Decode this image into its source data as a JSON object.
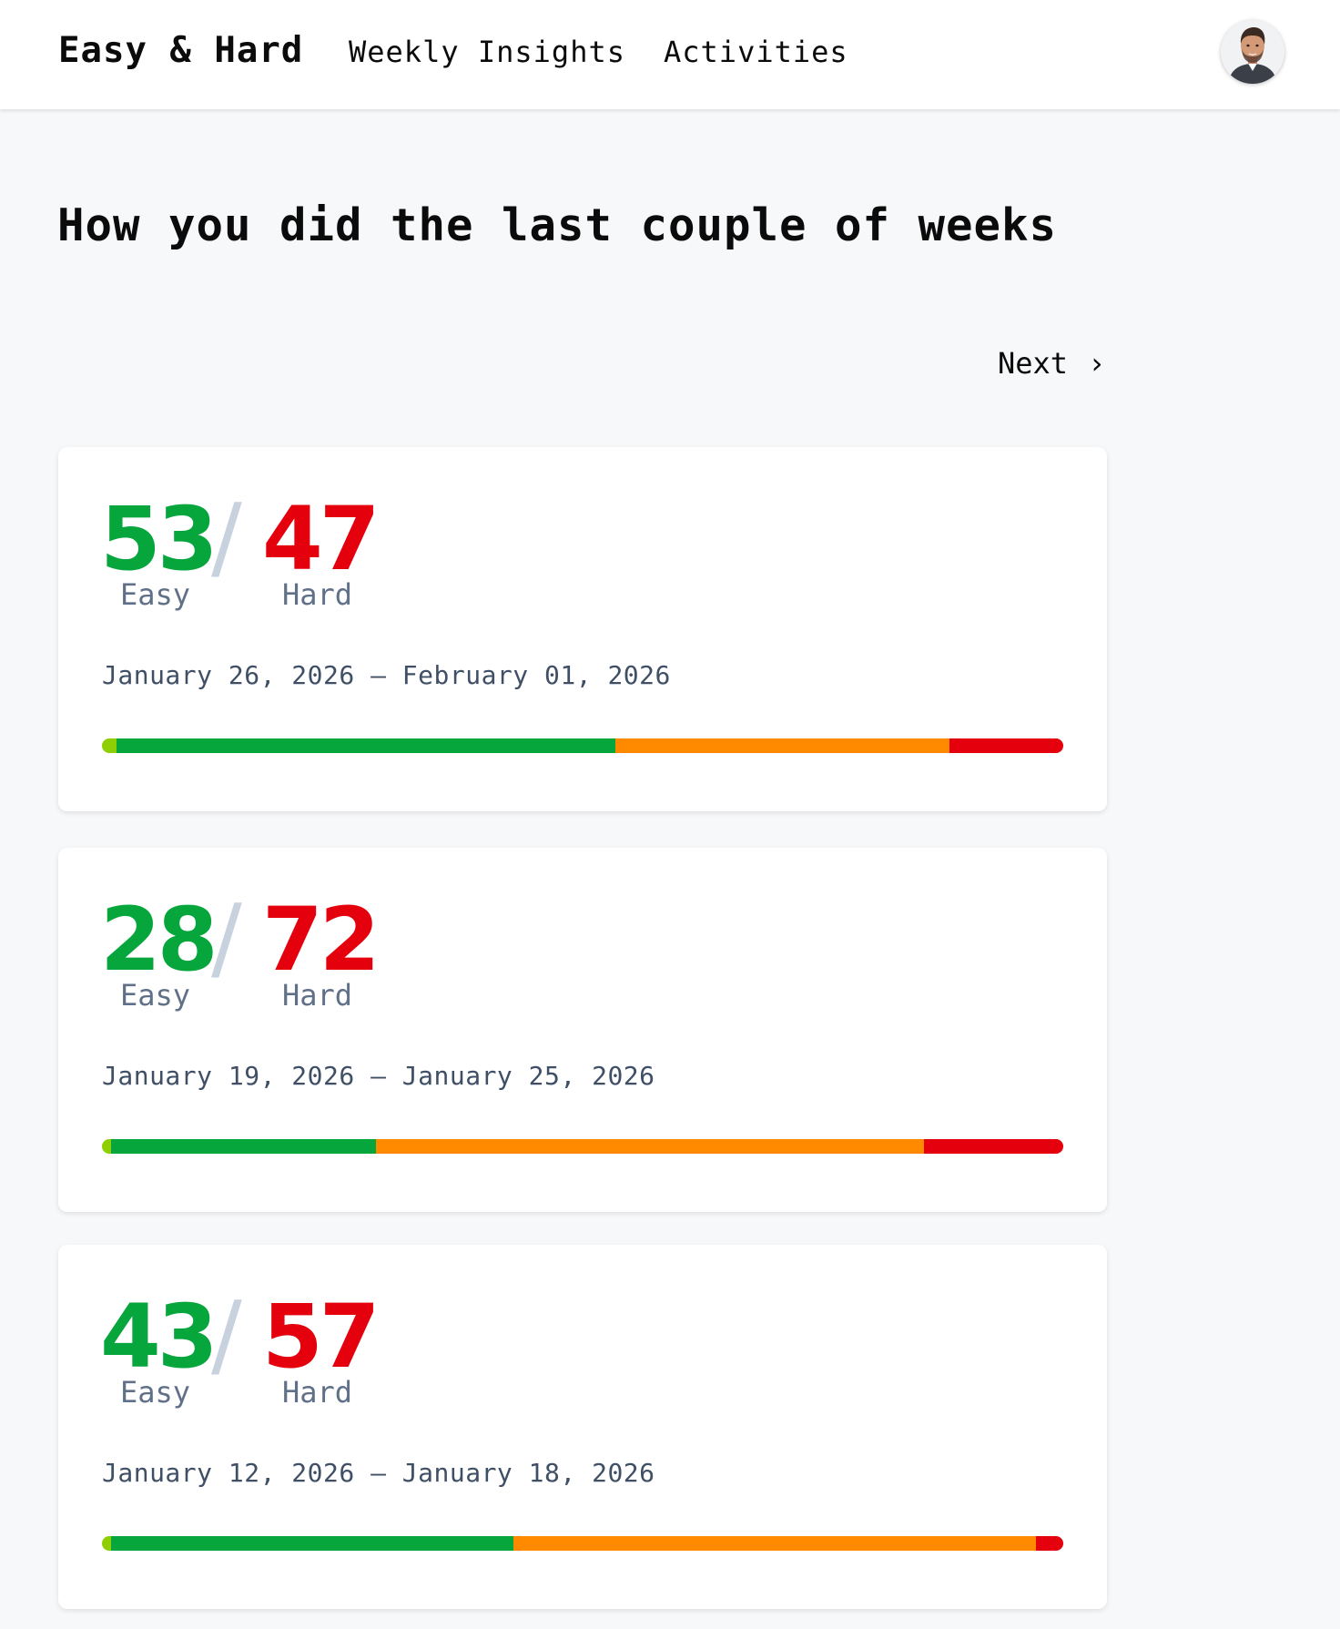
{
  "header": {
    "brand": "Easy & Hard",
    "nav": [
      {
        "label": "Weekly Insights"
      },
      {
        "label": "Activities"
      }
    ],
    "avatar_icon": "user-avatar"
  },
  "main": {
    "title": "How you did the last couple of weeks",
    "next_label": "Next",
    "next_icon": "chevron-right-icon",
    "next_glyph": "›"
  },
  "colors": {
    "easy": "#07a63d",
    "hard": "#e4000d",
    "zone_light": "#8fce00",
    "zone_easy": "#07a63d",
    "zone_moderate": "#ff8a00",
    "zone_hard": "#e4000d"
  },
  "weeks": [
    {
      "easy": "53",
      "hard": "47",
      "separator": "/",
      "easy_label": "Easy",
      "hard_label": "Hard",
      "range": "January 26, 2026 – February 01, 2026",
      "zones": [
        0.015,
        0.519,
        0.348,
        0.118
      ]
    },
    {
      "easy": "28",
      "hard": "72",
      "separator": "/",
      "easy_label": "Easy",
      "hard_label": "Hard",
      "range": "January 19, 2026 – January 25, 2026",
      "zones": [
        0.009,
        0.276,
        0.57,
        0.145
      ]
    },
    {
      "easy": "43",
      "hard": "57",
      "separator": "/",
      "easy_label": "Easy",
      "hard_label": "Hard",
      "range": "January 12, 2026 – January 18, 2026",
      "zones": [
        0.009,
        0.419,
        0.544,
        0.028
      ]
    }
  ]
}
